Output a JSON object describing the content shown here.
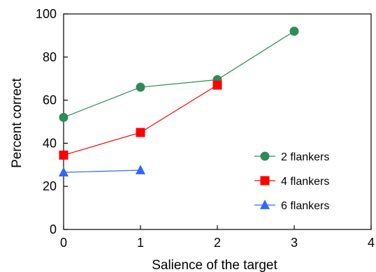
{
  "chart_data": {
    "type": "line",
    "title": "",
    "xlabel": "Salience of the target",
    "ylabel": "Percent correct",
    "xlim": [
      0,
      4
    ],
    "ylim": [
      0,
      100
    ],
    "x_ticks": [
      "0",
      "1",
      "2",
      "3",
      "4"
    ],
    "y_ticks": [
      "0",
      "20",
      "40",
      "60",
      "80",
      "100"
    ],
    "grid": false,
    "legend_position": "lower-right",
    "series": [
      {
        "name": "2 flankers",
        "marker": "circle",
        "color": "#2e8b57",
        "x": [
          0,
          1,
          2,
          3
        ],
        "y": [
          52,
          66,
          69.5,
          92
        ]
      },
      {
        "name": "4 flankers",
        "marker": "square",
        "color": "#ff0000",
        "x": [
          0,
          1,
          2
        ],
        "y": [
          34.5,
          45,
          67
        ]
      },
      {
        "name": "6 flankers",
        "marker": "triangle",
        "color": "#3366ff",
        "x": [
          0,
          1
        ],
        "y": [
          26.5,
          27.5
        ]
      }
    ]
  }
}
